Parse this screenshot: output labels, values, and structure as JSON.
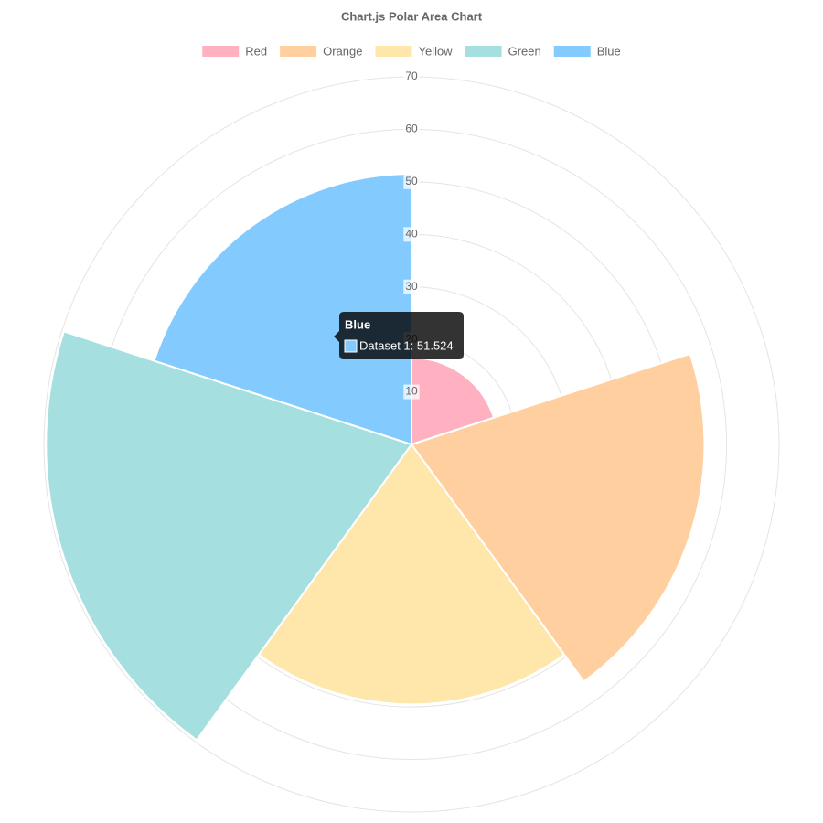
{
  "chart_data": {
    "type": "polarArea",
    "title": "Chart.js Polar Area Chart",
    "categories": [
      "Red",
      "Orange",
      "Yellow",
      "Green",
      "Blue"
    ],
    "values": [
      16.5,
      55.8,
      49.5,
      69.6,
      51.524
    ],
    "colors": [
      "#ffb1c1",
      "#ffcf9f",
      "#ffe6aa",
      "#a5dfdf",
      "#83cbff"
    ],
    "ylim": [
      0,
      70
    ],
    "yticks": [
      10,
      20,
      30,
      40,
      50,
      60,
      70
    ],
    "grid": true,
    "legend": "top",
    "tooltip": {
      "index": 4,
      "title": "Blue",
      "label": "Dataset 1: 51.524"
    }
  }
}
